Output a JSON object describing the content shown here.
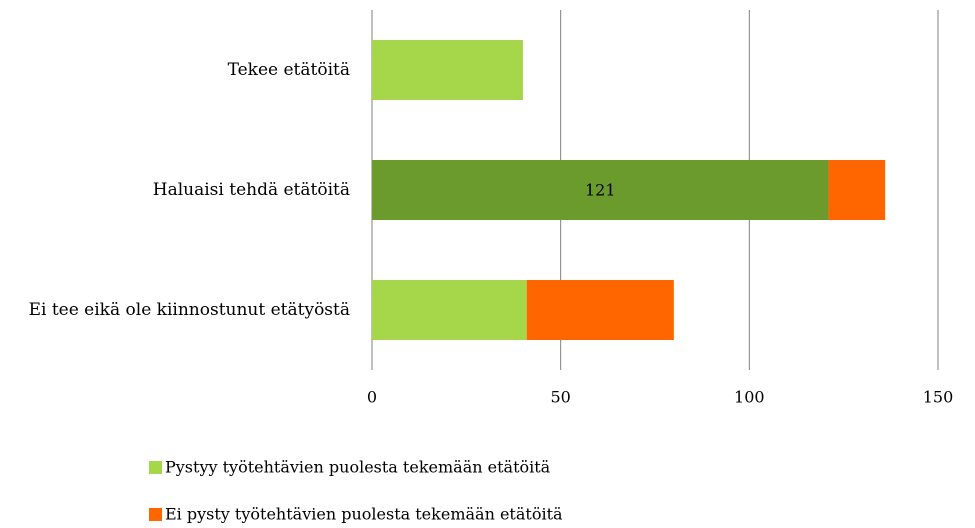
{
  "chart_data": {
    "type": "stacked-bar-horizontal",
    "categories": [
      "Tekee etätöitä",
      "Haluaisi tehdä etätöitä",
      "Ei tee eikä ole kiinnostunut etätyöstä"
    ],
    "series": [
      {
        "name": "Pystyy työtehtävien puolesta tekemään etätöitä",
        "color": "#a6d64a",
        "point_colors": [
          "#a6d64a",
          "#6a9b2c",
          "#a6d64a"
        ],
        "values": [
          40,
          121,
          41
        ],
        "value_labels": [
          null,
          "121",
          null
        ]
      },
      {
        "name": "Ei pysty työtehtävien puolesta tekemään etätöitä",
        "color": "#ff6600",
        "values": [
          0,
          15,
          39
        ]
      }
    ],
    "xlim": [
      0,
      150
    ],
    "xticks": [
      0,
      50,
      100,
      150
    ],
    "grid": true,
    "legend": "bottom"
  }
}
